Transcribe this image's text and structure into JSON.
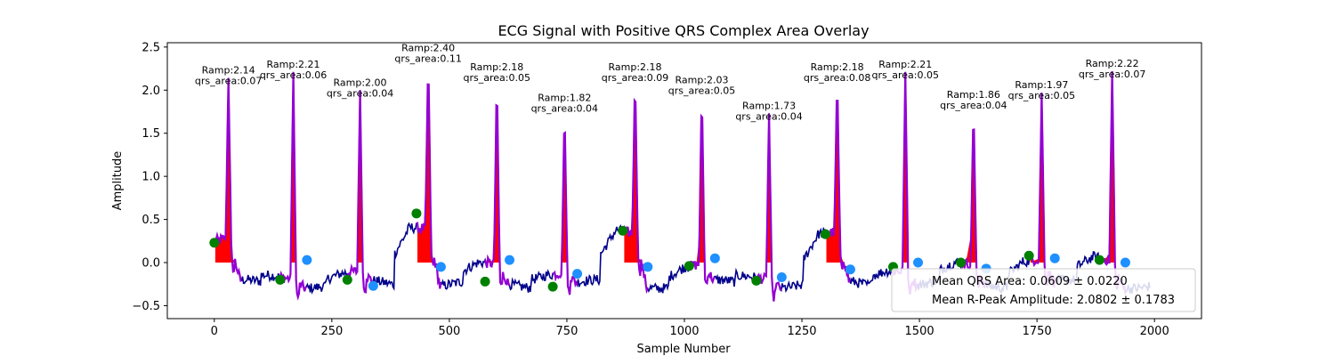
{
  "chart_data": {
    "type": "line",
    "title": "ECG Signal with Positive QRS Complex Area Overlay",
    "xlabel": "Sample Number",
    "ylabel": "Amplitude",
    "xlim": [
      -100,
      2100
    ],
    "ylim": [
      -0.65,
      2.55
    ],
    "xticks": [
      0,
      250,
      500,
      750,
      1000,
      1250,
      1500,
      1750,
      2000
    ],
    "yticks": [
      -0.5,
      0.0,
      0.5,
      1.0,
      1.5,
      2.0,
      2.5
    ],
    "grid": false,
    "colors": {
      "signal": "#00008b",
      "qrs_overlay": "#9400d3",
      "qrs_area_fill": "#ff0000",
      "q_point": "#008000",
      "s_point": "#1e90ff"
    },
    "beats": [
      {
        "r": 30,
        "ramp": 2.14,
        "qrs_area": 0.07,
        "ramp_label": "Ramp:2.14",
        "area_label": "qrs_area:0.07",
        "q": [
          0,
          0.23
        ],
        "s": null,
        "base": 0.25
      },
      {
        "r": 168,
        "ramp": 2.21,
        "qrs_area": 0.06,
        "ramp_label": "Ramp:2.21",
        "area_label": "qrs_area:0.06",
        "q": [
          140,
          -0.2
        ],
        "s": [
          197,
          0.03
        ],
        "base": -0.15
      },
      {
        "r": 310,
        "ramp": 2.0,
        "qrs_area": 0.04,
        "ramp_label": "Ramp:2.00",
        "area_label": "qrs_area:0.04",
        "q": [
          283,
          -0.2
        ],
        "s": [
          338,
          -0.27
        ],
        "base": -0.15
      },
      {
        "r": 455,
        "ramp": 2.4,
        "qrs_area": 0.11,
        "ramp_label": "Ramp:2.40",
        "area_label": "qrs_area:0.11",
        "q": [
          430,
          0.57
        ],
        "s": [
          482,
          -0.05
        ],
        "base": 0.45
      },
      {
        "r": 601,
        "ramp": 2.18,
        "qrs_area": 0.05,
        "ramp_label": "Ramp:2.18",
        "area_label": "qrs_area:0.05",
        "q": [
          576,
          -0.22
        ],
        "s": [
          628,
          0.03
        ],
        "base": -0.05
      },
      {
        "r": 745,
        "ramp": 1.82,
        "qrs_area": 0.04,
        "ramp_label": "Ramp:1.82",
        "area_label": "qrs_area:0.04",
        "q": [
          720,
          -0.28
        ],
        "s": [
          772,
          -0.13
        ],
        "base": -0.1
      },
      {
        "r": 895,
        "ramp": 2.18,
        "qrs_area": 0.09,
        "ramp_label": "Ramp:2.18",
        "area_label": "qrs_area:0.09",
        "q": [
          869,
          0.37
        ],
        "s": [
          922,
          -0.05
        ],
        "base": 0.35
      },
      {
        "r": 1037,
        "ramp": 2.03,
        "qrs_area": 0.05,
        "ramp_label": "Ramp:2.03",
        "area_label": "qrs_area:0.05",
        "q": [
          1010,
          -0.04
        ],
        "s": [
          1065,
          0.05
        ],
        "base": -0.05
      },
      {
        "r": 1180,
        "ramp": 1.73,
        "qrs_area": 0.04,
        "ramp_label": "Ramp:1.73",
        "area_label": "qrs_area:0.04",
        "q": [
          1153,
          -0.21
        ],
        "s": [
          1207,
          -0.17
        ],
        "base": -0.15
      },
      {
        "r": 1325,
        "ramp": 2.18,
        "qrs_area": 0.08,
        "ramp_label": "Ramp:2.18",
        "area_label": "qrs_area:0.08",
        "q": [
          1300,
          0.33
        ],
        "s": [
          1353,
          -0.08
        ],
        "base": 0.3
      },
      {
        "r": 1470,
        "ramp": 2.21,
        "qrs_area": 0.05,
        "ramp_label": "Ramp:2.21",
        "area_label": "qrs_area:0.05",
        "q": [
          1444,
          -0.05
        ],
        "s": [
          1497,
          0.0
        ],
        "base": -0.05
      },
      {
        "r": 1615,
        "ramp": 1.86,
        "qrs_area": 0.04,
        "ramp_label": "Ramp:1.86",
        "area_label": "qrs_area:0.04",
        "q": [
          1588,
          0.0
        ],
        "s": [
          1642,
          -0.07
        ],
        "base": -0.05
      },
      {
        "r": 1760,
        "ramp": 1.97,
        "qrs_area": 0.05,
        "ramp_label": "Ramp:1.97",
        "area_label": "qrs_area:0.05",
        "q": [
          1733,
          0.08
        ],
        "s": [
          1788,
          0.05
        ],
        "base": 0.05
      },
      {
        "r": 1910,
        "ramp": 2.22,
        "qrs_area": 0.07,
        "ramp_label": "Ramp:2.22",
        "area_label": "qrs_area:0.07",
        "q": [
          1883,
          0.03
        ],
        "s": [
          1938,
          0.0
        ],
        "base": 0.05
      }
    ],
    "legend": {
      "placement": "lower-right",
      "entries": [
        "Mean QRS Area: 0.0609 ± 0.0220",
        "Mean R-Peak Amplitude: 2.0802 ± 0.1783"
      ]
    }
  }
}
